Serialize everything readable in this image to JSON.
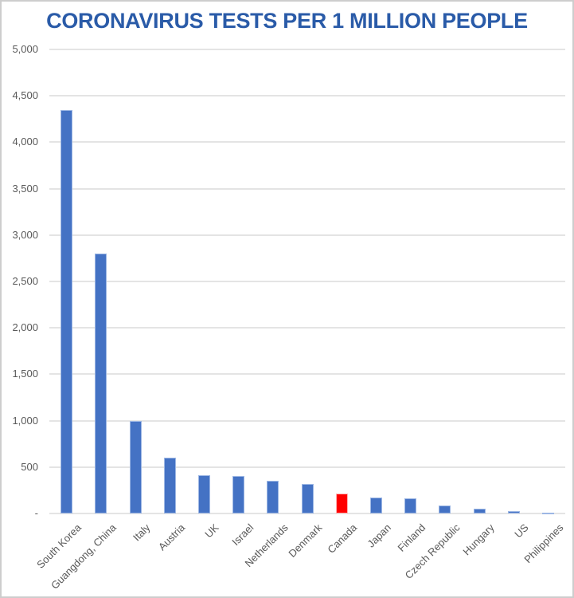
{
  "page": {
    "background": "#ffffff",
    "frame_border_color": "#cdcdcd"
  },
  "chart_data": {
    "type": "bar",
    "title": "CORONAVIRUS TESTS PER 1 MILLION PEOPLE",
    "title_color": "#2a5ba8",
    "categories": [
      "South Korea",
      "Guangdong, China",
      "Italy",
      "Austria",
      "UK",
      "Israel",
      "Netherlands",
      "Denmark",
      "Canada",
      "Japan",
      "Finland",
      "Czech Republic",
      "Hungary",
      "US",
      "Philippines"
    ],
    "values": [
      4350,
      2800,
      1000,
      600,
      410,
      400,
      350,
      320,
      215,
      170,
      160,
      90,
      50,
      25,
      10
    ],
    "bar_color_default": "#4472c4",
    "bar_edge_color": "#9db7e4",
    "highlight": {
      "category": "Canada",
      "index": 8,
      "color": "#ff0000",
      "edge_color": "#ffb3b3"
    },
    "xlabel": "",
    "ylabel": "",
    "ylim": [
      0,
      5000
    ],
    "ytick_step": 500,
    "ytick_labels_bottom_to_top": [
      "-",
      "500",
      "1,000",
      "1,500",
      "2,000",
      "2,500",
      "3,000",
      "3,500",
      "4,000",
      "4,500",
      "5,000"
    ],
    "x_label_rotation_deg": 45,
    "grid": "horizontal",
    "gridline_color": "#e4e4e4",
    "axis_label_color": "#595959",
    "legend": "none"
  }
}
